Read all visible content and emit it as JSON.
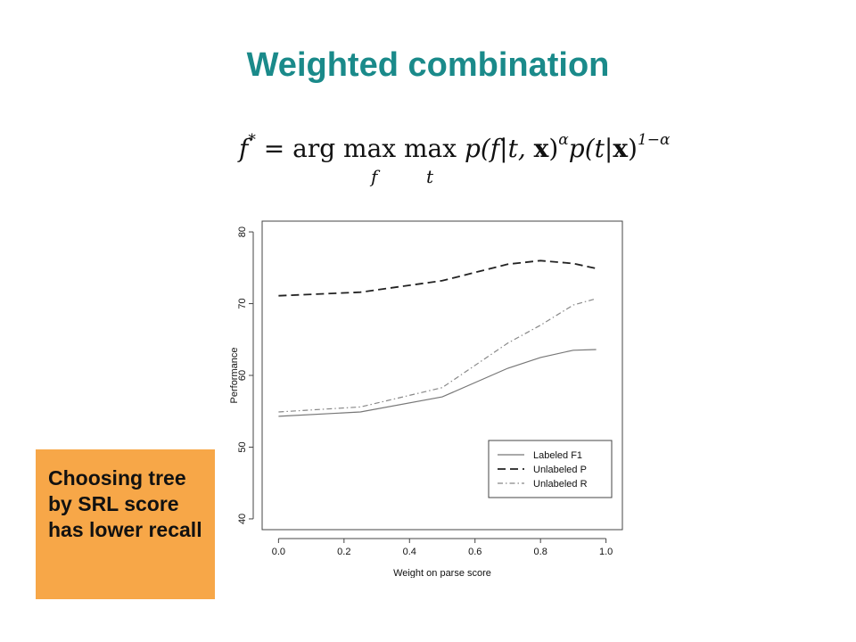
{
  "slide": {
    "title": "Weighted combination",
    "callout_text": "Choosing tree by SRL score has lower recall",
    "formula": {
      "lhs": "f",
      "lhs_sup": "*",
      "eq": "=",
      "argmax": "arg max",
      "argmax_sub": "f",
      "max": "max",
      "max_sub": "t",
      "term1": "p(f|t, ",
      "x1": "x",
      "close1": ")",
      "exp1": "α",
      "term2": "p(t|",
      "x2": "x",
      "close2": ")",
      "exp2": "1−α"
    },
    "colors": {
      "title": "#1a8a8a",
      "callout_bg": "#f7a748"
    }
  },
  "chart_data": {
    "type": "line",
    "xlabel": "Weight on parse score",
    "ylabel": "Performance",
    "xlim": [
      0.0,
      1.0
    ],
    "ylim": [
      40,
      80
    ],
    "xticks": [
      "0.0",
      "0.2",
      "0.4",
      "0.6",
      "0.8",
      "1.0"
    ],
    "yticks": [
      "40",
      "50",
      "60",
      "70",
      "80"
    ],
    "x": [
      0.0,
      0.25,
      0.5,
      0.7,
      0.8,
      0.9,
      0.97
    ],
    "series": [
      {
        "name": "Labeled F1",
        "style": "solid",
        "color": "#777777",
        "values": [
          54.3,
          54.9,
          57.0,
          61.0,
          62.5,
          63.5,
          63.6
        ]
      },
      {
        "name": "Unlabeled P",
        "style": "dashed",
        "color": "#222222",
        "values": [
          71.1,
          71.6,
          73.2,
          75.5,
          76.0,
          75.6,
          74.9
        ]
      },
      {
        "name": "Unlabeled R",
        "style": "dotdash",
        "color": "#888888",
        "values": [
          54.9,
          55.6,
          58.3,
          64.5,
          67.0,
          69.8,
          70.7
        ]
      }
    ],
    "legend_position": "bottom-right",
    "grid": false
  }
}
